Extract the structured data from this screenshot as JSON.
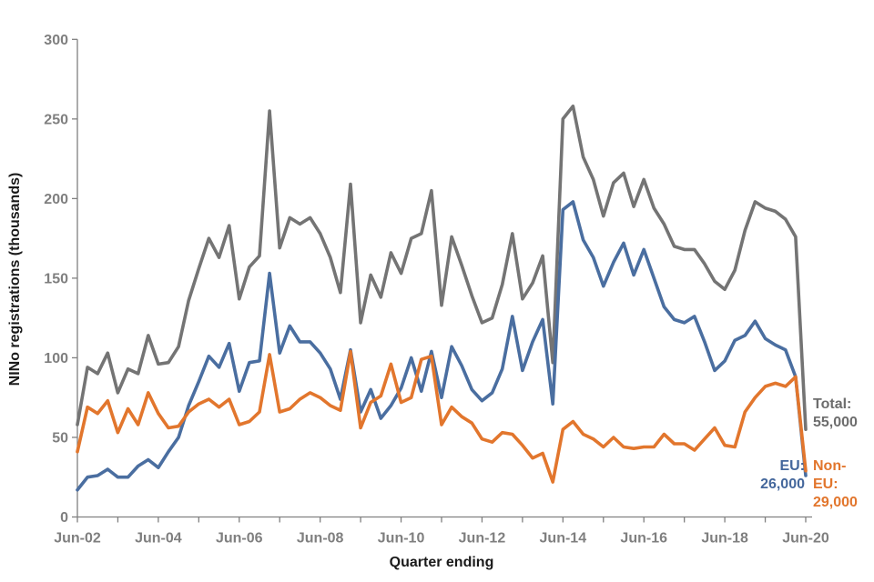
{
  "chart_data": {
    "type": "line",
    "title": "",
    "xlabel": "Quarter ending",
    "ylabel": "NINo registrations (thousands)",
    "x_start_quarter": "Jun-02",
    "x_end_quarter": "Jun-20",
    "points_per_year": 4,
    "n_points": 73,
    "ylim": [
      0,
      300
    ],
    "y_ticks": [
      0,
      50,
      100,
      150,
      200,
      250,
      300
    ],
    "x_tick_labels": [
      "Jun-02",
      "Jun-04",
      "Jun-06",
      "Jun-08",
      "Jun-10",
      "Jun-12",
      "Jun-14",
      "Jun-16",
      "Jun-18",
      "Jun-20"
    ],
    "grid": false,
    "legend_position": "end-of-line annotations",
    "series": [
      {
        "name": "Total",
        "color": "#747474",
        "values": [
          58,
          94,
          90,
          103,
          78,
          93,
          90,
          114,
          96,
          97,
          107,
          136,
          156,
          175,
          163,
          183,
          137,
          157,
          164,
          255,
          169,
          188,
          184,
          188,
          178,
          163,
          141,
          209,
          122,
          152,
          138,
          166,
          153,
          175,
          178,
          205,
          133,
          176,
          158,
          139,
          122,
          125,
          146,
          178,
          137,
          147,
          164,
          97,
          250,
          258,
          226,
          212,
          189,
          210,
          216,
          195,
          212,
          194,
          184,
          170,
          168,
          168,
          159,
          148,
          143,
          155,
          180,
          198,
          194,
          192,
          187,
          176,
          55
        ]
      },
      {
        "name": "EU",
        "color": "#4a6ea0",
        "values": [
          17,
          25,
          26,
          30,
          25,
          25,
          32,
          36,
          31,
          41,
          50,
          70,
          85,
          101,
          94,
          109,
          79,
          97,
          98,
          153,
          103,
          120,
          110,
          110,
          103,
          93,
          74,
          105,
          66,
          80,
          62,
          70,
          81,
          100,
          79,
          104,
          75,
          107,
          95,
          80,
          73,
          78,
          93,
          126,
          92,
          110,
          124,
          71,
          193,
          198,
          174,
          163,
          145,
          160,
          172,
          152,
          168,
          150,
          132,
          124,
          122,
          126,
          110,
          92,
          98,
          111,
          114,
          123,
          112,
          108,
          105,
          88,
          26
        ]
      },
      {
        "name": "Non-EU",
        "color": "#e2762d",
        "values": [
          41,
          69,
          65,
          73,
          53,
          68,
          58,
          78,
          65,
          56,
          57,
          66,
          71,
          74,
          69,
          74,
          58,
          60,
          66,
          102,
          66,
          68,
          74,
          78,
          75,
          70,
          67,
          104,
          56,
          72,
          76,
          96,
          72,
          75,
          99,
          101,
          58,
          69,
          63,
          59,
          49,
          47,
          53,
          52,
          45,
          37,
          40,
          22,
          55,
          60,
          52,
          49,
          44,
          50,
          44,
          43,
          44,
          44,
          52,
          46,
          46,
          42,
          49,
          56,
          45,
          44,
          66,
          75,
          82,
          84,
          82,
          88,
          29
        ]
      }
    ]
  },
  "axes": {
    "x_title": "Quarter ending",
    "y_title": "NINo registrations (thousands)",
    "axis_color": "#808080",
    "tick_label_color": "#7f7f7f"
  },
  "annotations": {
    "total": {
      "line1": "Total:",
      "line2": "55,000"
    },
    "eu": {
      "line1": "EU:",
      "line2": "26,000"
    },
    "non_eu": {
      "line1": "Non-",
      "line2": "EU:",
      "line3": "29,000"
    }
  }
}
